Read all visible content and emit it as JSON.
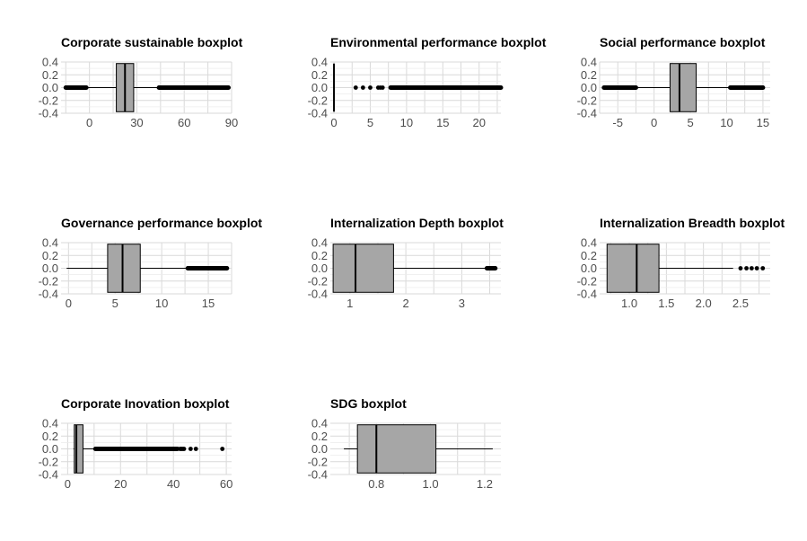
{
  "style": {
    "box_fill": "#a6a6a6",
    "grid_color": "#d9d9d9",
    "tick_color": "#4d4d4d"
  },
  "chart_data": [
    {
      "type": "boxplot",
      "title": "Corporate sustainable boxplot",
      "xlim": [
        -18,
        90
      ],
      "ylim": [
        -0.4,
        0.4
      ],
      "xticks": [
        0,
        30,
        60,
        90
      ],
      "yticks": [
        0.4,
        0.2,
        0.0,
        -0.2,
        -0.4
      ],
      "ytick_labels": [
        "0.4",
        "0.2",
        "0.0",
        "-0.2",
        "-0.4"
      ],
      "box": {
        "whisker_low": -15,
        "q1": 17,
        "median": 22.5,
        "q3": 28,
        "whisker_high": 44
      },
      "outlier_ranges": [
        [
          -15,
          -2
        ],
        [
          44,
          88
        ]
      ],
      "outliers": []
    },
    {
      "type": "boxplot",
      "title": "Environmental performance boxplot",
      "xlim": [
        -0.5,
        23
      ],
      "ylim": [
        -0.4,
        0.4
      ],
      "xticks": [
        0,
        5,
        10,
        15,
        20
      ],
      "yticks": [
        0.4,
        0.2,
        0.0,
        -0.2,
        -0.4
      ],
      "ytick_labels": [
        "0.4",
        "0.2",
        "0.0",
        "-0.2",
        "-0.4"
      ],
      "box": {
        "whisker_low": 0,
        "q1": 0,
        "median": 0,
        "q3": 0,
        "whisker_high": 0
      },
      "outlier_ranges": [
        [
          7.8,
          23
        ]
      ],
      "outliers": [
        3,
        4,
        5,
        6.1,
        6.4,
        6.7
      ]
    },
    {
      "type": "boxplot",
      "title": "Social performance boxplot",
      "xlim": [
        -7.5,
        16
      ],
      "ylim": [
        -0.4,
        0.4
      ],
      "xticks": [
        -5,
        0,
        5,
        10,
        15
      ],
      "yticks": [
        0.4,
        0.2,
        0.0,
        -0.2,
        -0.4
      ],
      "ytick_labels": [
        "0.4",
        "0.2",
        "0.0",
        "-0.2",
        "-0.4"
      ],
      "box": {
        "whisker_low": -2.5,
        "q1": 2.2,
        "median": 3.5,
        "q3": 5.8,
        "whisker_high": 10.5
      },
      "outlier_ranges": [
        [
          -6.9,
          -2.5
        ],
        [
          10.5,
          15
        ]
      ],
      "outliers": []
    },
    {
      "type": "boxplot",
      "title": "Governance performance boxplot",
      "xlim": [
        -0.8,
        17.5
      ],
      "ylim": [
        -0.4,
        0.4
      ],
      "xticks": [
        0,
        5,
        10,
        15
      ],
      "yticks": [
        0.4,
        0.2,
        0.0,
        -0.2,
        -0.4
      ],
      "ytick_labels": [
        "0.4",
        "0.2",
        "0.0",
        "-0.2",
        "-0.4"
      ],
      "box": {
        "whisker_low": -0.2,
        "q1": 4.2,
        "median": 5.8,
        "q3": 7.7,
        "whisker_high": 12.8
      },
      "outlier_ranges": [
        [
          12.8,
          17
        ]
      ],
      "outliers": []
    },
    {
      "type": "boxplot",
      "title": "Internalization Depth boxplot",
      "xlim": [
        0.65,
        3.7
      ],
      "ylim": [
        -0.4,
        0.4
      ],
      "xticks": [
        1,
        2,
        3
      ],
      "yticks": [
        0.4,
        0.2,
        0.0,
        -0.2,
        -0.4
      ],
      "ytick_labels": [
        "0.4",
        "0.2",
        "0.0",
        "-0.2",
        "-0.4"
      ],
      "box": {
        "whisker_low": 0.7,
        "q1": 0.7,
        "median": 1.1,
        "q3": 1.78,
        "whisker_high": 3.45
      },
      "outlier_ranges": [
        [
          3.45,
          3.6
        ]
      ],
      "outliers": []
    },
    {
      "type": "boxplot",
      "title": "Internalization Breadth boxplot",
      "xlim": [
        0.6,
        2.9
      ],
      "ylim": [
        -0.4,
        0.4
      ],
      "xticks": [
        1.0,
        1.5,
        2.0,
        2.5
      ],
      "xtick_labels": [
        "1.0",
        "1.5",
        "2.0",
        "2.5"
      ],
      "yticks": [
        0.4,
        0.2,
        0.0,
        -0.2,
        -0.4
      ],
      "ytick_labels": [
        "0.4",
        "0.2",
        "0.0",
        "-0.2",
        "-0.4"
      ],
      "box": {
        "whisker_low": 0.7,
        "q1": 0.7,
        "median": 1.1,
        "q3": 1.4,
        "whisker_high": 2.4
      },
      "outlier_ranges": [],
      "outliers": [
        2.5,
        2.58,
        2.65,
        2.72,
        2.8
      ]
    },
    {
      "type": "boxplot",
      "title": "Corporate Inovation boxplot",
      "xlim": [
        -2.5,
        62
      ],
      "ylim": [
        -0.4,
        0.4
      ],
      "xticks": [
        0,
        20,
        40,
        60
      ],
      "yticks": [
        0.4,
        0.2,
        0.0,
        -0.2,
        -0.4
      ],
      "ytick_labels": [
        "0.4",
        "0.2",
        "0.0",
        "-0.2",
        "-0.4"
      ],
      "box": {
        "whisker_low": 2.2,
        "q1": 2.5,
        "median": 3.3,
        "q3": 5.8,
        "whisker_high": 10.5
      },
      "outlier_ranges": [
        [
          10.5,
          41.5
        ]
      ],
      "outliers": [
        42.5,
        43,
        43.5,
        44,
        46.5,
        48.5,
        58.5
      ]
    },
    {
      "type": "boxplot",
      "title": "SDG boxplot",
      "xlim": [
        0.63,
        1.26
      ],
      "ylim": [
        -0.4,
        0.4
      ],
      "xticks": [
        0.8,
        1.0,
        1.2
      ],
      "xtick_labels": [
        "0.8",
        "1.0",
        "1.2"
      ],
      "yticks": [
        0.4,
        0.2,
        0.0,
        -0.2,
        -0.4
      ],
      "ytick_labels": [
        "0.4",
        "0.2",
        "0.0",
        "-0.2",
        "-0.4"
      ],
      "box": {
        "whisker_low": 0.68,
        "q1": 0.73,
        "median": 0.8,
        "q3": 1.02,
        "whisker_high": 1.23
      },
      "outlier_ranges": [],
      "outliers": []
    }
  ]
}
